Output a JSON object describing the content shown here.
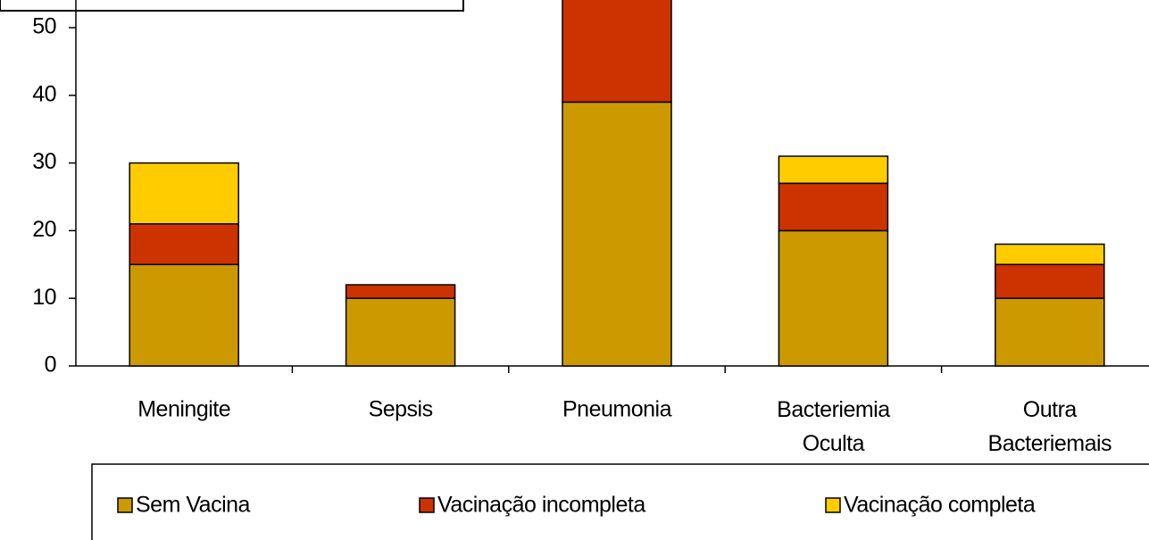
{
  "chart_data": {
    "type": "bar",
    "stacked": true,
    "categories": [
      "Meningite",
      "Sepsis",
      "Pneumonia",
      "Bacteriemia Oculta",
      "Outra Bacteriemais"
    ],
    "series": [
      {
        "name": "Sem Vacina",
        "color": "#cc9900",
        "values": [
          15,
          10,
          39,
          20,
          10
        ]
      },
      {
        "name": "Vacinação incompleta",
        "color": "#cc3300",
        "values": [
          6,
          2,
          16,
          7,
          5
        ]
      },
      {
        "name": "Vacinação completa",
        "color": "#ffcc00",
        "values": [
          9,
          0,
          0,
          4,
          3
        ]
      }
    ],
    "ylim": [
      0,
      60
    ],
    "yticks": [
      0,
      10,
      20,
      30,
      40,
      50
    ],
    "grid": false,
    "legend": "bottom"
  }
}
